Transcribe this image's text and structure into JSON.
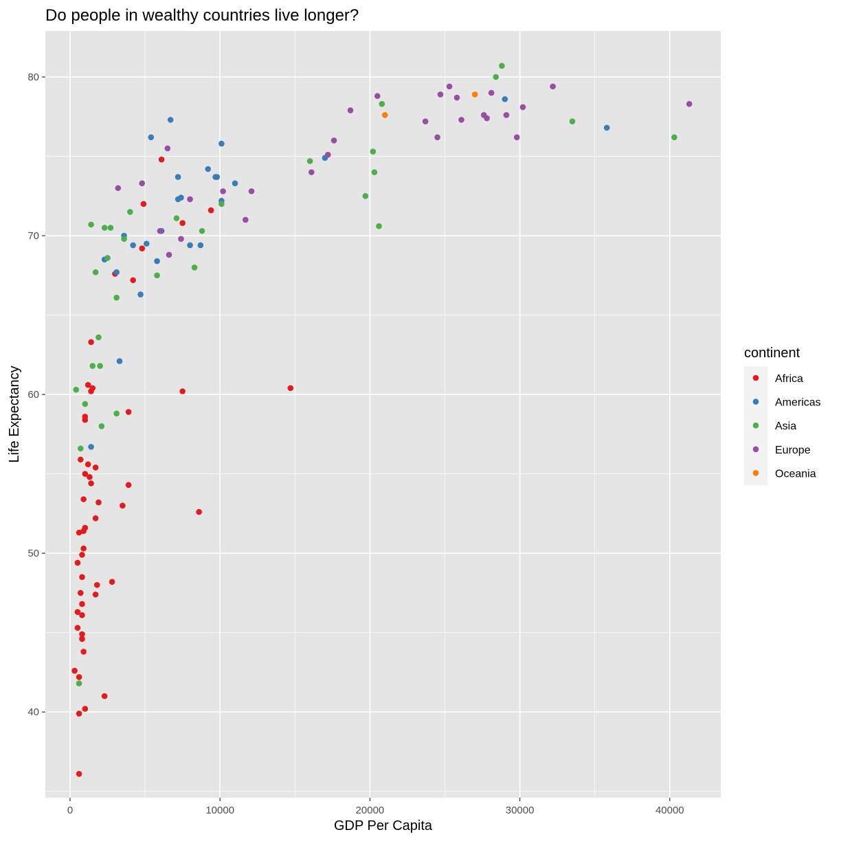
{
  "chart_data": {
    "type": "scatter",
    "title": "Do people in wealthy countries live longer?",
    "xlabel": "GDP Per Capita",
    "ylabel": "Life Expectancy",
    "xlim": [
      -1650,
      43400
    ],
    "ylim": [
      34.6,
      82.9
    ],
    "xticks": [
      0,
      10000,
      20000,
      30000,
      40000
    ],
    "yticks": [
      40,
      50,
      60,
      70,
      80
    ],
    "grid": true,
    "legend": {
      "title": "continent",
      "position": "right"
    },
    "series": [
      {
        "name": "Africa",
        "color": "#e41a1c",
        "points": [
          [
            600,
            36.1
          ],
          [
            1000,
            40.2
          ],
          [
            600,
            39.9
          ],
          [
            2300,
            41.0
          ],
          [
            600,
            42.2
          ],
          [
            300,
            42.6
          ],
          [
            900,
            43.8
          ],
          [
            800,
            44.6
          ],
          [
            800,
            44.9
          ],
          [
            500,
            45.3
          ],
          [
            800,
            46.1
          ],
          [
            500,
            46.3
          ],
          [
            800,
            46.8
          ],
          [
            700,
            47.5
          ],
          [
            1700,
            47.4
          ],
          [
            1800,
            48.0
          ],
          [
            2800,
            48.2
          ],
          [
            800,
            48.5
          ],
          [
            500,
            49.4
          ],
          [
            800,
            49.9
          ],
          [
            900,
            50.3
          ],
          [
            600,
            51.3
          ],
          [
            900,
            51.4
          ],
          [
            1000,
            51.6
          ],
          [
            1700,
            52.2
          ],
          [
            8600,
            52.6
          ],
          [
            3500,
            53.0
          ],
          [
            1900,
            53.2
          ],
          [
            900,
            53.4
          ],
          [
            3900,
            54.3
          ],
          [
            1400,
            54.4
          ],
          [
            1300,
            54.8
          ],
          [
            1000,
            55.0
          ],
          [
            1700,
            55.4
          ],
          [
            1200,
            55.6
          ],
          [
            700,
            55.9
          ],
          [
            1000,
            58.4
          ],
          [
            1000,
            58.6
          ],
          [
            3900,
            58.9
          ],
          [
            7500,
            60.2
          ],
          [
            1400,
            60.2
          ],
          [
            1500,
            60.4
          ],
          [
            1200,
            60.6
          ],
          [
            14700,
            60.4
          ],
          [
            1400,
            63.3
          ],
          [
            3000,
            67.6
          ],
          [
            4200,
            67.2
          ],
          [
            4800,
            69.2
          ],
          [
            7500,
            70.8
          ],
          [
            9400,
            71.6
          ],
          [
            4900,
            72.0
          ],
          [
            6100,
            74.8
          ]
        ]
      },
      {
        "name": "Americas",
        "color": "#377eb8",
        "points": [
          [
            1400,
            56.7
          ],
          [
            3300,
            62.1
          ],
          [
            4700,
            66.3
          ],
          [
            3100,
            67.7
          ],
          [
            2300,
            68.5
          ],
          [
            5800,
            68.4
          ],
          [
            4200,
            69.4
          ],
          [
            5100,
            69.5
          ],
          [
            3600,
            70.0
          ],
          [
            8000,
            69.4
          ],
          [
            8700,
            69.4
          ],
          [
            6100,
            70.3
          ],
          [
            7200,
            72.3
          ],
          [
            7400,
            72.4
          ],
          [
            10100,
            72.2
          ],
          [
            11000,
            73.3
          ],
          [
            7200,
            73.7
          ],
          [
            9800,
            73.7
          ],
          [
            9700,
            73.7
          ],
          [
            9200,
            74.2
          ],
          [
            17000,
            74.9
          ],
          [
            10100,
            75.8
          ],
          [
            5400,
            76.2
          ],
          [
            6700,
            77.3
          ],
          [
            35800,
            76.8
          ],
          [
            29000,
            78.6
          ]
        ]
      },
      {
        "name": "Asia",
        "color": "#4daf4a",
        "points": [
          [
            600,
            41.8
          ],
          [
            2100,
            58.0
          ],
          [
            3100,
            58.8
          ],
          [
            1000,
            59.4
          ],
          [
            400,
            60.3
          ],
          [
            2000,
            61.8
          ],
          [
            1500,
            61.8
          ],
          [
            1900,
            63.6
          ],
          [
            3100,
            66.1
          ],
          [
            5800,
            67.5
          ],
          [
            1700,
            67.7
          ],
          [
            8300,
            68.0
          ],
          [
            2500,
            68.6
          ],
          [
            3600,
            69.8
          ],
          [
            8800,
            70.3
          ],
          [
            2300,
            70.5
          ],
          [
            2700,
            70.5
          ],
          [
            1400,
            70.7
          ],
          [
            7100,
            71.1
          ],
          [
            4000,
            71.5
          ],
          [
            10100,
            72.0
          ],
          [
            20600,
            70.6
          ],
          [
            19700,
            72.5
          ],
          [
            20300,
            74.0
          ],
          [
            16000,
            74.7
          ],
          [
            20200,
            75.3
          ],
          [
            40300,
            76.2
          ],
          [
            33500,
            77.2
          ],
          [
            20800,
            78.3
          ],
          [
            28400,
            80.0
          ],
          [
            28800,
            80.7
          ],
          [
            700,
            56.6
          ]
        ]
      },
      {
        "name": "Europe",
        "color": "#984ea3",
        "points": [
          [
            6600,
            68.8
          ],
          [
            7400,
            69.8
          ],
          [
            6000,
            70.3
          ],
          [
            11700,
            71.0
          ],
          [
            8000,
            72.3
          ],
          [
            10200,
            72.8
          ],
          [
            3200,
            73.0
          ],
          [
            4800,
            73.3
          ],
          [
            12100,
            72.8
          ],
          [
            16100,
            74.0
          ],
          [
            6500,
            75.5
          ],
          [
            17200,
            75.1
          ],
          [
            17600,
            76.0
          ],
          [
            24500,
            76.2
          ],
          [
            29800,
            76.2
          ],
          [
            23700,
            77.2
          ],
          [
            26100,
            77.3
          ],
          [
            27600,
            77.6
          ],
          [
            27800,
            77.4
          ],
          [
            29100,
            77.6
          ],
          [
            18700,
            77.9
          ],
          [
            30200,
            78.1
          ],
          [
            41300,
            78.3
          ],
          [
            25800,
            78.7
          ],
          [
            24700,
            78.9
          ],
          [
            28100,
            79.0
          ],
          [
            20500,
            78.8
          ],
          [
            25300,
            79.4
          ],
          [
            32200,
            79.4
          ]
        ]
      },
      {
        "name": "Oceania",
        "color": "#ff7f00",
        "points": [
          [
            21000,
            77.6
          ],
          [
            27000,
            78.9
          ]
        ]
      }
    ]
  }
}
